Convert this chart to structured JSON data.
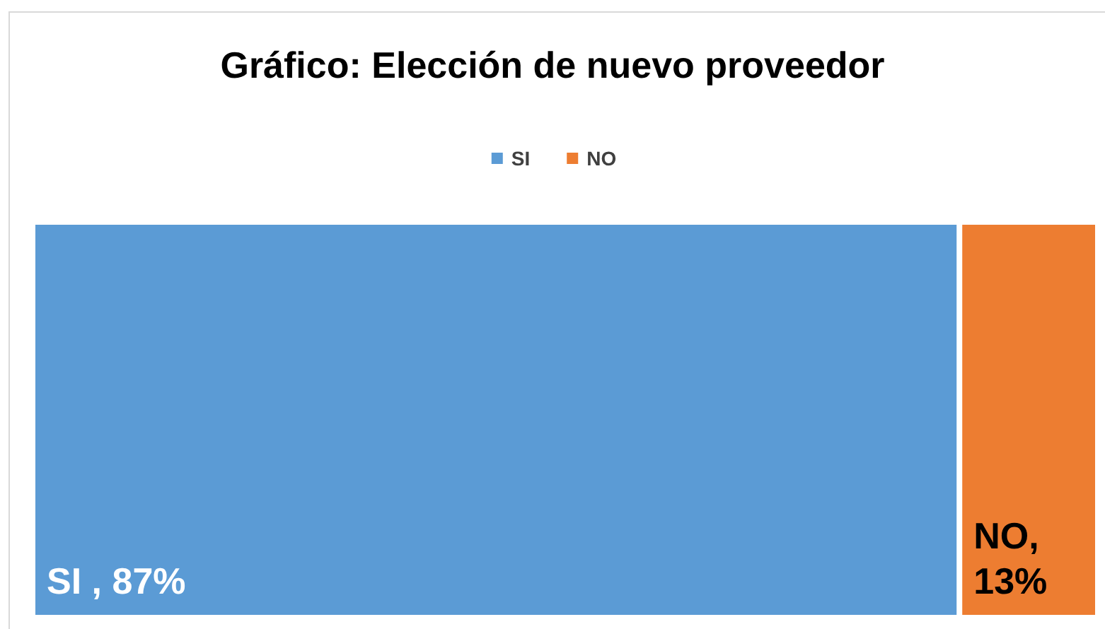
{
  "chart_data": {
    "type": "bar",
    "orientation": "horizontal",
    "stacked": true,
    "title": "Gráfico: Elección de nuevo proveedor",
    "categories": [
      null
    ],
    "series": [
      {
        "name": "SI",
        "color": "#5b9bd5",
        "values": [
          87
        ],
        "value_labels": [
          "SI , 87%"
        ]
      },
      {
        "name": "NO",
        "color": "#ed7d31",
        "values": [
          13
        ],
        "value_labels": [
          "NO, 13%"
        ]
      }
    ],
    "legend": "top"
  }
}
